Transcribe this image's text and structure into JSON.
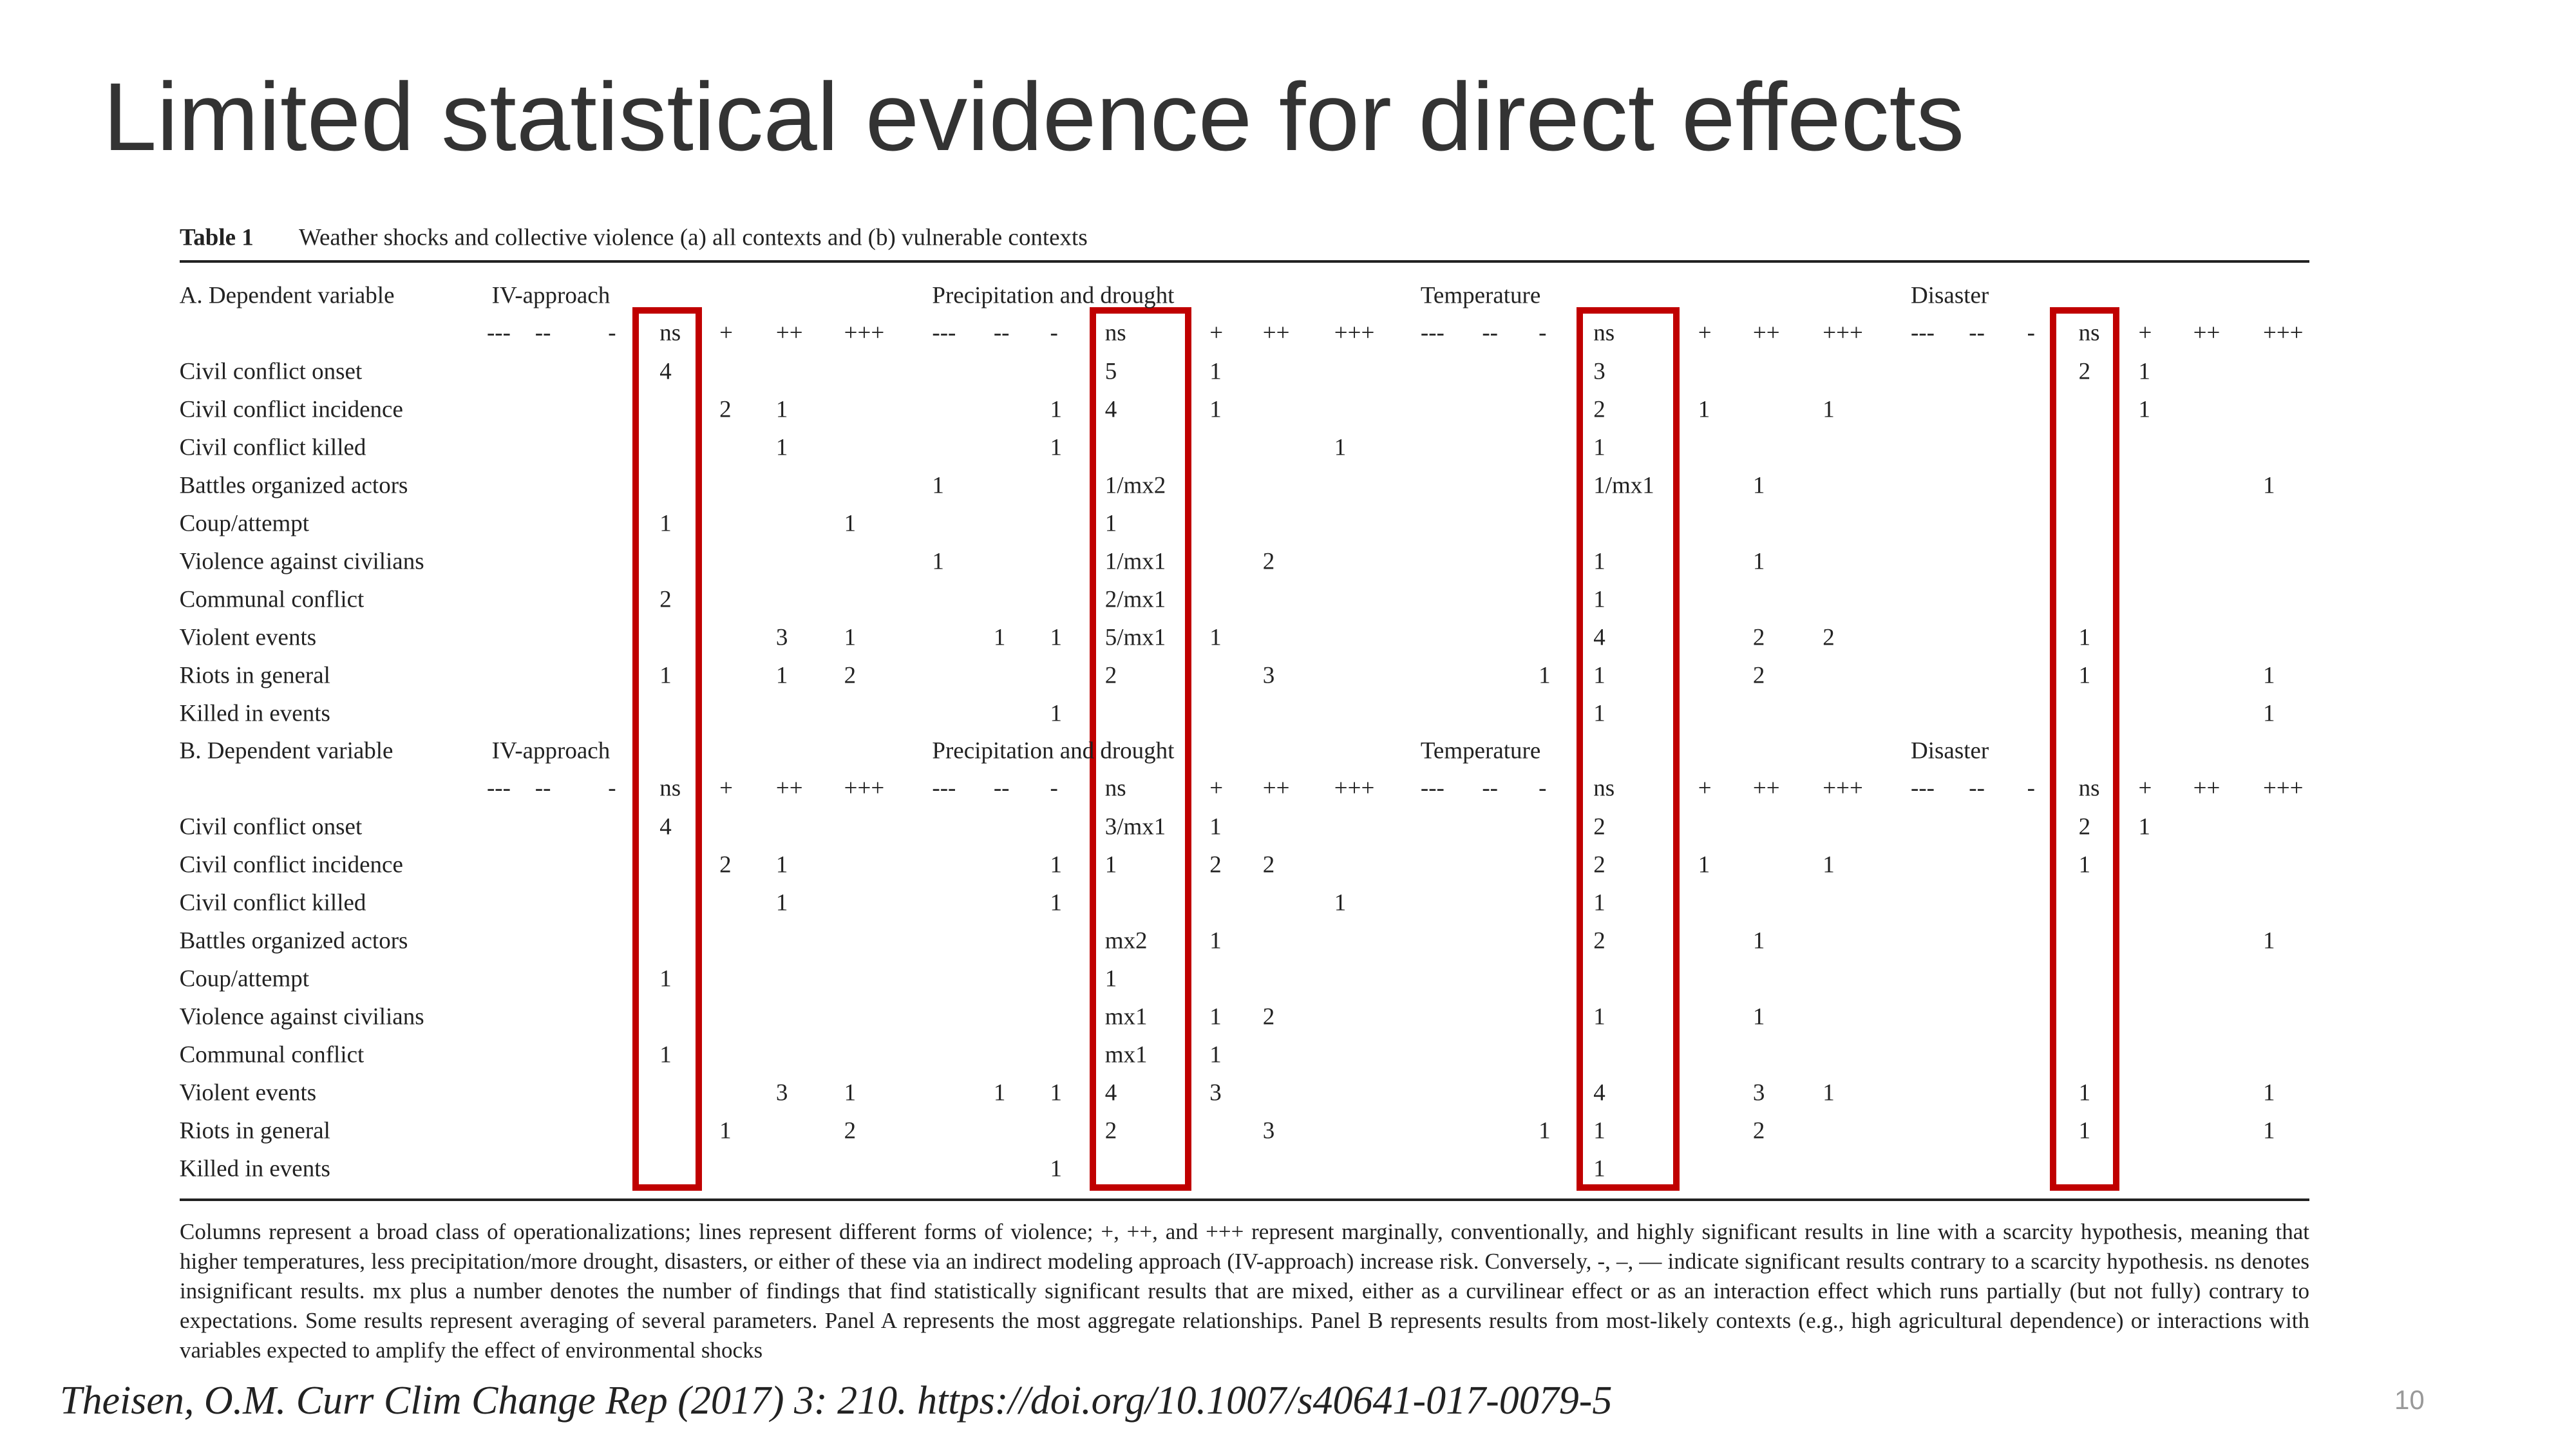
{
  "title": "Limited statistical evidence for direct effects",
  "table": {
    "caption_label": "Table 1",
    "caption": "Weather shocks and collective violence (a) all contexts and (b) vulnerable contexts",
    "column_headers": [
      "---",
      "--",
      "-",
      "ns",
      "+",
      "++",
      "+++"
    ],
    "panels": [
      {
        "header": "A. Dependent variable",
        "groups": [
          "IV-approach",
          "Precipitation and drought",
          "Temperature",
          "Disaster"
        ],
        "rows": [
          {
            "label": "Civil conflict onset",
            "cells": [
              {
                "ns": "4"
              },
              {
                "ns": "5",
                "+": "1"
              },
              {
                "ns": "3"
              },
              {
                "ns": "2",
                "+": "1"
              }
            ]
          },
          {
            "label": "Civil conflict incidence",
            "cells": [
              {
                "+": "2",
                "++": "1"
              },
              {
                "-": "1",
                "ns": "4",
                "+": "1"
              },
              {
                "ns": "2",
                "+": "1",
                "+++": "1"
              },
              {
                "+": "1"
              }
            ]
          },
          {
            "label": "Civil conflict killed",
            "cells": [
              {
                "++": "1"
              },
              {
                "-": "1",
                "+++": "1"
              },
              {
                "ns": "1"
              },
              {}
            ]
          },
          {
            "label": "Battles organized actors",
            "cells": [
              {},
              {
                "---": "1",
                "ns": "1/mx2"
              },
              {
                "ns": "1/mx1",
                "++": "1"
              },
              {
                "+++": "1"
              }
            ]
          },
          {
            "label": "Coup/attempt",
            "cells": [
              {
                "ns": "1",
                "+++": "1"
              },
              {
                "ns": "1"
              },
              {},
              {}
            ]
          },
          {
            "label": "Violence against civilians",
            "cells": [
              {},
              {
                "---": "1",
                "ns": "1/mx1",
                "++": "2"
              },
              {
                "ns": "1",
                "++": "1"
              },
              {}
            ]
          },
          {
            "label": "Communal conflict",
            "cells": [
              {
                "ns": "2"
              },
              {
                "ns": "2/mx1"
              },
              {
                "ns": "1"
              },
              {}
            ]
          },
          {
            "label": "Violent events",
            "cells": [
              {
                "++": "3",
                "+++": "1"
              },
              {
                "--": "1",
                "-": "1",
                "ns": "5/mx1",
                "+": "1"
              },
              {
                "ns": "4",
                "++": "2",
                "+++": "2"
              },
              {
                "ns": "1"
              }
            ]
          },
          {
            "label": "Riots in general",
            "cells": [
              {
                "ns": "1",
                "++": "1",
                "+++": "2"
              },
              {
                "ns": "2",
                "++": "3"
              },
              {
                "-": "1",
                "ns": "1",
                "++": "2"
              },
              {
                "ns": "1",
                "+++": "1"
              }
            ]
          },
          {
            "label": "Killed in events",
            "cells": [
              {},
              {
                "-": "1"
              },
              {
                "ns": "1"
              },
              {
                "+++": "1"
              }
            ]
          }
        ]
      },
      {
        "header": "B. Dependent variable",
        "groups": [
          "IV-approach",
          "Precipitation and drought",
          "Temperature",
          "Disaster"
        ],
        "rows": [
          {
            "label": "Civil conflict onset",
            "cells": [
              {
                "ns": "4"
              },
              {
                "ns": "3/mx1",
                "+": "1"
              },
              {
                "ns": "2"
              },
              {
                "ns": "2",
                "+": "1"
              }
            ]
          },
          {
            "label": "Civil conflict incidence",
            "cells": [
              {
                "+": "2",
                "++": "1"
              },
              {
                "-": "1",
                "ns": "1",
                "+": "2",
                "++": "2"
              },
              {
                "ns": "2",
                "+": "1",
                "+++": "1"
              },
              {
                "ns": "1"
              }
            ]
          },
          {
            "label": "Civil conflict killed",
            "cells": [
              {
                "++": "1"
              },
              {
                "-": "1",
                "+++": "1"
              },
              {
                "ns": "1"
              },
              {}
            ]
          },
          {
            "label": "Battles organized actors",
            "cells": [
              {},
              {
                "ns": "mx2",
                "+": "1"
              },
              {
                "ns": "2",
                "++": "1"
              },
              {
                "+++": "1"
              }
            ]
          },
          {
            "label": "Coup/attempt",
            "cells": [
              {
                "ns": "1"
              },
              {
                "ns": "1"
              },
              {},
              {}
            ]
          },
          {
            "label": "Violence against civilians",
            "cells": [
              {},
              {
                "ns": "mx1",
                "+": "1",
                "++": "2"
              },
              {
                "ns": "1",
                "++": "1"
              },
              {}
            ]
          },
          {
            "label": "Communal conflict",
            "cells": [
              {
                "ns": "1"
              },
              {
                "ns": "mx1",
                "+": "1"
              },
              {},
              {}
            ]
          },
          {
            "label": "Violent events",
            "cells": [
              {
                "++": "3",
                "+++": "1"
              },
              {
                "--": "1",
                "-": "1",
                "ns": "4",
                "+": "3"
              },
              {
                "ns": "4",
                "++": "3",
                "+++": "1"
              },
              {
                "ns": "1",
                "+++": "1"
              }
            ]
          },
          {
            "label": "Riots in general",
            "cells": [
              {
                "+": "1",
                "+++": "2"
              },
              {
                "ns": "2",
                "++": "3"
              },
              {
                "-": "1",
                "ns": "1",
                "++": "2"
              },
              {
                "ns": "1",
                "+++": "1"
              }
            ]
          },
          {
            "label": "Killed in events",
            "cells": [
              {},
              {
                "-": "1"
              },
              {
                "ns": "1"
              },
              {}
            ]
          }
        ]
      }
    ],
    "footnote": "Columns represent a broad class of operationalizations; lines represent different forms of violence; +, ++, and +++ represent marginally, conventionally, and highly significant results in line with a scarcity hypothesis, meaning that higher temperatures, less precipitation/more drought, disasters, or either of these via an indirect modeling approach (IV-approach) increase risk. Conversely, -, –, — indicate significant results contrary to a scarcity hypothesis. ns denotes insignificant results. mx plus a number denotes the number of findings that find statistically significant results that are mixed, either as a curvilinear effect or as an interaction effect which runs partially (but not fully) contrary to expectations. Some results represent averaging of several parameters. Panel A represents the most aggregate relationships. Panel B represents results from most-likely contexts (e.g., high agricultural dependence) or interactions with variables expected to amplify the effect of environmental shocks"
  },
  "citation": "Theisen, O.M. Curr Clim Change Rep (2017) 3: 210. https://doi.org/10.1007/s40641-017-0079-5",
  "page_number": "10"
}
